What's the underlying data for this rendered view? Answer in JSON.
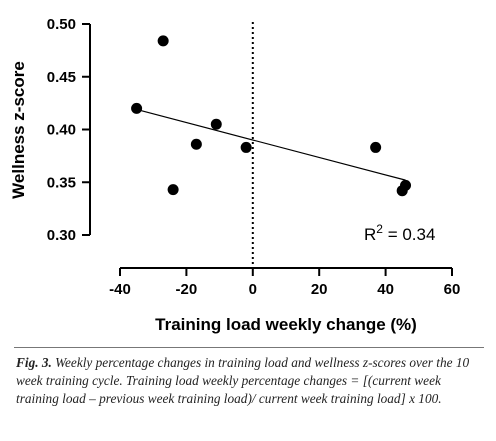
{
  "chart_data": {
    "type": "scatter",
    "xlabel": "Training load weekly change (%)",
    "ylabel": "Wellness z-score",
    "xlim": [
      -40,
      60
    ],
    "ylim": [
      0.3,
      0.5
    ],
    "xticks": [
      "-40",
      "-20",
      "0",
      "20",
      "40",
      "60"
    ],
    "yticks": [
      "0.30",
      "0.35",
      "0.40",
      "0.45",
      "0.50"
    ],
    "points": [
      {
        "x": -35,
        "y": 0.42
      },
      {
        "x": -27,
        "y": 0.484
      },
      {
        "x": -24,
        "y": 0.343
      },
      {
        "x": -17,
        "y": 0.386
      },
      {
        "x": -11,
        "y": 0.405
      },
      {
        "x": -2,
        "y": 0.383
      },
      {
        "x": 37,
        "y": 0.383
      },
      {
        "x": 45,
        "y": 0.342
      },
      {
        "x": 46,
        "y": 0.347
      }
    ],
    "regression_line": {
      "x": [
        -35,
        46
      ],
      "y": [
        0.419,
        0.352
      ]
    },
    "reference_line": {
      "x": 0,
      "style": "dotted"
    },
    "annotation": {
      "prefix": "R",
      "superscript": "2",
      "suffix": " = 0.34"
    }
  },
  "caption": {
    "label": "Fig. 3.",
    "text": "Weekly percentage changes in training load and wellness z-scores over the 10 week training cycle. Training load weekly percentage changes = [(current week training load – previous week training load)/ current week training load] x 100."
  }
}
